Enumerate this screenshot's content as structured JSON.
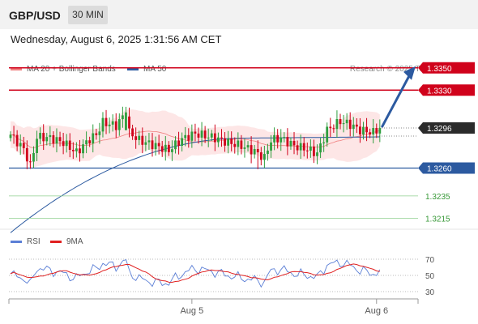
{
  "header": {
    "pair": "GBP/USD",
    "timeframe": "30 MIN"
  },
  "datetime": "Wednesday, August 6, 2025 1:31:56 AM CET",
  "legend": {
    "bb": {
      "label": "MA 20 + Bollinger Bands",
      "color": "#f08080"
    },
    "ma50": {
      "label": "MA 50",
      "color": "#2c5aa0"
    },
    "rsi": {
      "label": "RSI",
      "color": "#5b7fd6"
    },
    "ma9": {
      "label": "9MA",
      "color": "#e02020"
    }
  },
  "credit": "Research © 2025 Trading Central",
  "colors": {
    "bull": "#2e9e3e",
    "bear": "#d0021b",
    "resistance": "#d0021b",
    "pivot": "#2c5aa0",
    "support": "#3a9a3a",
    "arrow": "#2c5aa0"
  },
  "chart_data": {
    "type": "candlestick",
    "symbol": "GBP/USD",
    "timeframe": "30 MIN",
    "ylim": [
      1.32,
      1.336
    ],
    "x_ticks": [
      {
        "label": "Aug 5",
        "index": 55
      },
      {
        "label": "Aug 6",
        "index": 111
      }
    ],
    "last_price": 1.3296,
    "levels": [
      {
        "value": 1.335,
        "label": "1.3350",
        "kind": "resistance"
      },
      {
        "value": 1.333,
        "label": "1.3330",
        "kind": "resistance"
      },
      {
        "value": 1.326,
        "label": "1.3260",
        "kind": "pivot"
      },
      {
        "value": 1.3235,
        "label": "1.3235",
        "kind": "support"
      },
      {
        "value": 1.3215,
        "label": "1.3215",
        "kind": "support"
      }
    ],
    "forecast_target": 1.335,
    "rsi_levels": [
      70,
      50,
      30
    ],
    "rsi_ylim": [
      20,
      80
    ]
  }
}
